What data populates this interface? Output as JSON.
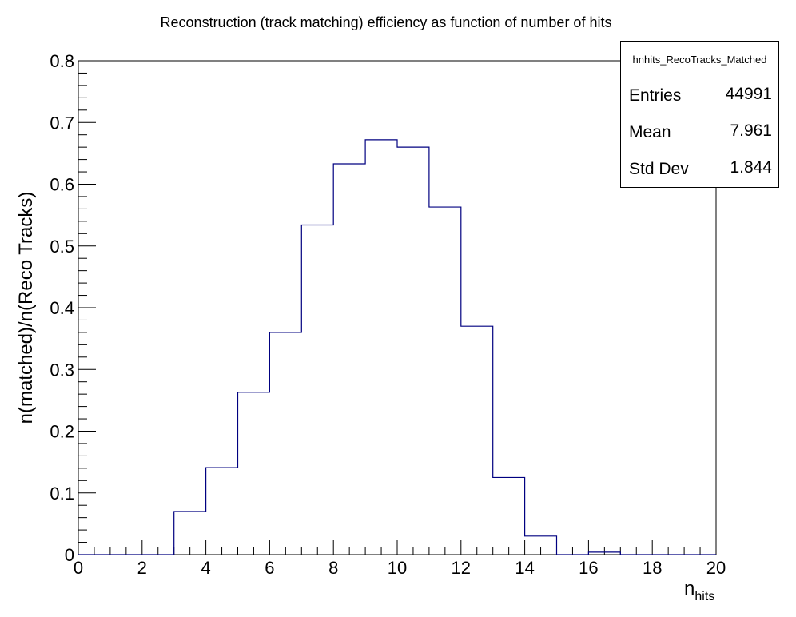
{
  "chart_data": {
    "type": "histogram",
    "title": "Reconstruction (track matching) efficiency as function of number of hits",
    "ylabel": "n(matched)/n(Reco Tracks)",
    "xlabel_main": "n",
    "xlabel_sub": "hits",
    "xlim": [
      0,
      20
    ],
    "ylim": [
      0,
      0.8
    ],
    "bin_edges": [
      0,
      1,
      2,
      3,
      4,
      5,
      6,
      7,
      8,
      9,
      10,
      11,
      12,
      13,
      14,
      15,
      16,
      17,
      18,
      19,
      20
    ],
    "values": [
      0,
      0,
      0,
      0.07,
      0.141,
      0.263,
      0.36,
      0.534,
      0.633,
      0.672,
      0.66,
      0.563,
      0.37,
      0.125,
      0.03,
      0,
      0.004,
      0,
      0,
      0
    ],
    "x_ticks": [
      0,
      2,
      4,
      6,
      8,
      10,
      12,
      14,
      16,
      18,
      20
    ],
    "y_ticks": [
      "0",
      "0.1",
      "0.2",
      "0.3",
      "0.4",
      "0.5",
      "0.6",
      "0.7",
      "0.8"
    ],
    "line_color": "#000080",
    "grid": false
  },
  "stats": {
    "title": "hnhits_RecoTracks_Matched",
    "rows": [
      {
        "label": "Entries",
        "value": "44991"
      },
      {
        "label": "Mean",
        "value": "7.961"
      },
      {
        "label": "Std Dev",
        "value": "1.844"
      }
    ]
  }
}
